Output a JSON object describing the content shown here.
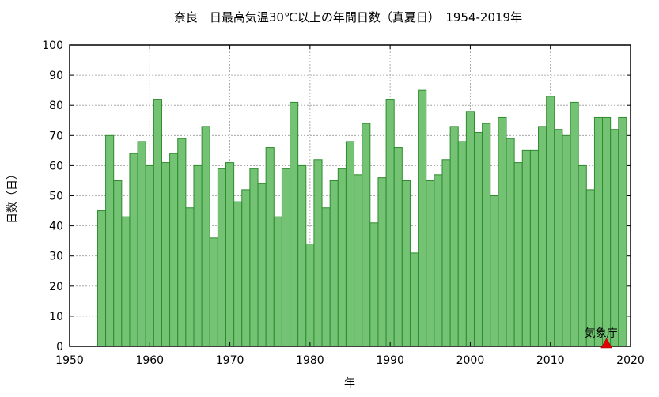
{
  "chart_data": {
    "type": "bar",
    "title": "奈良　日最高気温30℃以上の年間日数（真夏日）　1954-2019年",
    "xlabel": "年",
    "ylabel": "日数（日）",
    "xlim": [
      1950,
      2020
    ],
    "ylim": [
      0,
      100
    ],
    "x_ticks": [
      1950,
      1960,
      1970,
      1980,
      1990,
      2000,
      2010,
      2020
    ],
    "y_ticks": [
      0,
      10,
      20,
      30,
      40,
      50,
      60,
      70,
      80,
      90,
      100
    ],
    "grid": true,
    "bar_color": "#74c274",
    "bar_edge_color": "#2e8b2e",
    "years": [
      1954,
      1955,
      1956,
      1957,
      1958,
      1959,
      1960,
      1961,
      1962,
      1963,
      1964,
      1965,
      1966,
      1967,
      1968,
      1969,
      1970,
      1971,
      1972,
      1973,
      1974,
      1975,
      1976,
      1977,
      1978,
      1979,
      1980,
      1981,
      1982,
      1983,
      1984,
      1985,
      1986,
      1987,
      1988,
      1989,
      1990,
      1991,
      1992,
      1993,
      1994,
      1995,
      1996,
      1997,
      1998,
      1999,
      2000,
      2001,
      2002,
      2003,
      2004,
      2005,
      2006,
      2007,
      2008,
      2009,
      2010,
      2011,
      2012,
      2013,
      2014,
      2015,
      2016,
      2017,
      2018,
      2019
    ],
    "values": [
      45,
      70,
      55,
      43,
      64,
      68,
      60,
      82,
      61,
      64,
      69,
      46,
      60,
      73,
      36,
      59,
      61,
      48,
      52,
      59,
      54,
      66,
      43,
      59,
      81,
      60,
      34,
      62,
      46,
      55,
      59,
      68,
      57,
      74,
      41,
      56,
      82,
      66,
      55,
      31,
      85,
      55,
      57,
      62,
      73,
      68,
      78,
      71,
      74,
      50,
      76,
      69,
      61,
      65,
      65,
      73,
      83,
      72,
      70,
      81,
      60,
      52,
      76,
      76,
      72,
      76
    ],
    "annotation": {
      "text": "気象庁",
      "x": 2017,
      "y": 0,
      "marker_color": "#e00000"
    }
  }
}
